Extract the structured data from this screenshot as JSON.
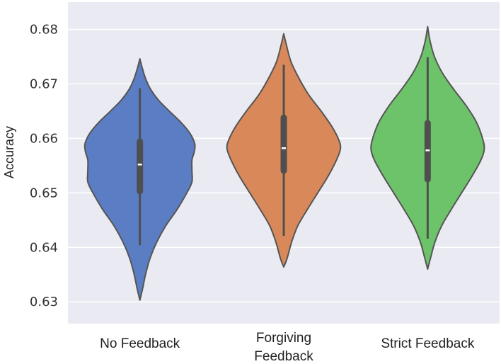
{
  "chart_data": {
    "type": "violin",
    "title": "",
    "xlabel": "",
    "ylabel": "Accuracy",
    "ylim": [
      0.626,
      0.685
    ],
    "yticks": [
      "0.63",
      "0.64",
      "0.65",
      "0.66",
      "0.67",
      "0.68"
    ],
    "grid": true,
    "categories": [
      {
        "label_lines": [
          "No Feedback"
        ],
        "color": "#5a7dc4",
        "min": 0.6303,
        "max": 0.6746,
        "whisker_low": 0.6404,
        "whisker_high": 0.6692,
        "q1": 0.6503,
        "median": 0.6552,
        "q3": 0.6594,
        "density": [
          [
            0.6303,
            0.0
          ],
          [
            0.6325,
            0.05
          ],
          [
            0.635,
            0.1
          ],
          [
            0.638,
            0.18
          ],
          [
            0.641,
            0.3
          ],
          [
            0.644,
            0.46
          ],
          [
            0.647,
            0.66
          ],
          [
            0.65,
            0.83
          ],
          [
            0.652,
            0.92
          ],
          [
            0.654,
            0.92
          ],
          [
            0.656,
            0.92
          ],
          [
            0.6575,
            0.96
          ],
          [
            0.659,
            0.97
          ],
          [
            0.661,
            0.88
          ],
          [
            0.663,
            0.72
          ],
          [
            0.665,
            0.52
          ],
          [
            0.667,
            0.33
          ],
          [
            0.669,
            0.19
          ],
          [
            0.671,
            0.1
          ],
          [
            0.673,
            0.04
          ],
          [
            0.6746,
            0.0
          ]
        ]
      },
      {
        "label_lines": [
          "Forgiving",
          "Feedback"
        ],
        "color": "#d9885a",
        "min": 0.6364,
        "max": 0.6792,
        "whisker_low": 0.6421,
        "whisker_high": 0.6735,
        "q1": 0.6541,
        "median": 0.6582,
        "q3": 0.6638,
        "density": [
          [
            0.6364,
            0.0
          ],
          [
            0.638,
            0.06
          ],
          [
            0.641,
            0.14
          ],
          [
            0.644,
            0.25
          ],
          [
            0.647,
            0.42
          ],
          [
            0.65,
            0.6
          ],
          [
            0.653,
            0.78
          ],
          [
            0.656,
            0.93
          ],
          [
            0.658,
            1.0
          ],
          [
            0.6595,
            0.98
          ],
          [
            0.662,
            0.86
          ],
          [
            0.665,
            0.66
          ],
          [
            0.668,
            0.44
          ],
          [
            0.671,
            0.27
          ],
          [
            0.674,
            0.13
          ],
          [
            0.677,
            0.05
          ],
          [
            0.6792,
            0.0
          ]
        ]
      },
      {
        "label_lines": [
          "Strict Feedback"
        ],
        "color": "#6dc36a",
        "min": 0.636,
        "max": 0.6805,
        "whisker_low": 0.6416,
        "whisker_high": 0.6749,
        "q1": 0.6525,
        "median": 0.6578,
        "q3": 0.6628,
        "density": [
          [
            0.636,
            0.0
          ],
          [
            0.638,
            0.05
          ],
          [
            0.641,
            0.13
          ],
          [
            0.644,
            0.25
          ],
          [
            0.647,
            0.42
          ],
          [
            0.65,
            0.6
          ],
          [
            0.653,
            0.78
          ],
          [
            0.656,
            0.94
          ],
          [
            0.658,
            1.0
          ],
          [
            0.66,
            0.97
          ],
          [
            0.663,
            0.86
          ],
          [
            0.666,
            0.68
          ],
          [
            0.669,
            0.46
          ],
          [
            0.672,
            0.26
          ],
          [
            0.675,
            0.12
          ],
          [
            0.678,
            0.04
          ],
          [
            0.6805,
            0.0
          ]
        ]
      }
    ]
  }
}
